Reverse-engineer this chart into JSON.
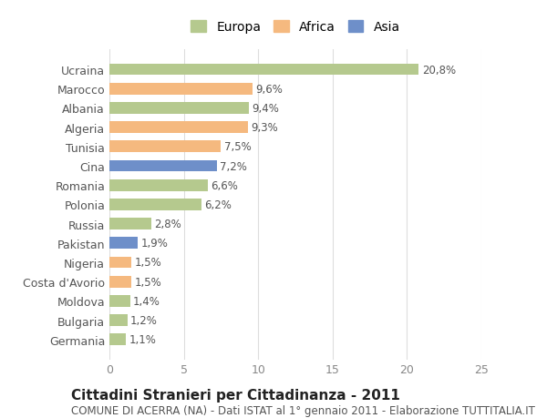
{
  "categories": [
    "Germania",
    "Bulgaria",
    "Moldova",
    "Costa d'Avorio",
    "Nigeria",
    "Pakistan",
    "Russia",
    "Polonia",
    "Romania",
    "Cina",
    "Tunisia",
    "Algeria",
    "Albania",
    "Marocco",
    "Ucraina"
  ],
  "values": [
    1.1,
    1.2,
    1.4,
    1.5,
    1.5,
    1.9,
    2.8,
    6.2,
    6.6,
    7.2,
    7.5,
    9.3,
    9.4,
    9.6,
    20.8
  ],
  "labels": [
    "1,1%",
    "1,2%",
    "1,4%",
    "1,5%",
    "1,5%",
    "1,9%",
    "2,8%",
    "6,2%",
    "6,6%",
    "7,2%",
    "7,5%",
    "9,3%",
    "9,4%",
    "9,6%",
    "20,8%"
  ],
  "colors": [
    "#b5c98e",
    "#b5c98e",
    "#b5c98e",
    "#f5b97f",
    "#f5b97f",
    "#6e8fc9",
    "#b5c98e",
    "#b5c98e",
    "#b5c98e",
    "#6e8fc9",
    "#f5b97f",
    "#f5b97f",
    "#b5c98e",
    "#f5b97f",
    "#b5c98e"
  ],
  "legend_labels": [
    "Europa",
    "Africa",
    "Asia"
  ],
  "legend_colors": [
    "#b5c98e",
    "#f5b97f",
    "#6e8fc9"
  ],
  "title": "Cittadini Stranieri per Cittadinanza - 2011",
  "subtitle": "COMUNE DI ACERRA (NA) - Dati ISTAT al 1° gennaio 2011 - Elaborazione TUTTITALIA.IT",
  "xlim": [
    0,
    25
  ],
  "xticks": [
    0,
    5,
    10,
    15,
    20,
    25
  ],
  "background_color": "#ffffff",
  "grid_color": "#dddddd",
  "bar_height": 0.6,
  "label_fontsize": 8.5,
  "title_fontsize": 11,
  "subtitle_fontsize": 8.5,
  "tick_fontsize": 9,
  "legend_fontsize": 10
}
